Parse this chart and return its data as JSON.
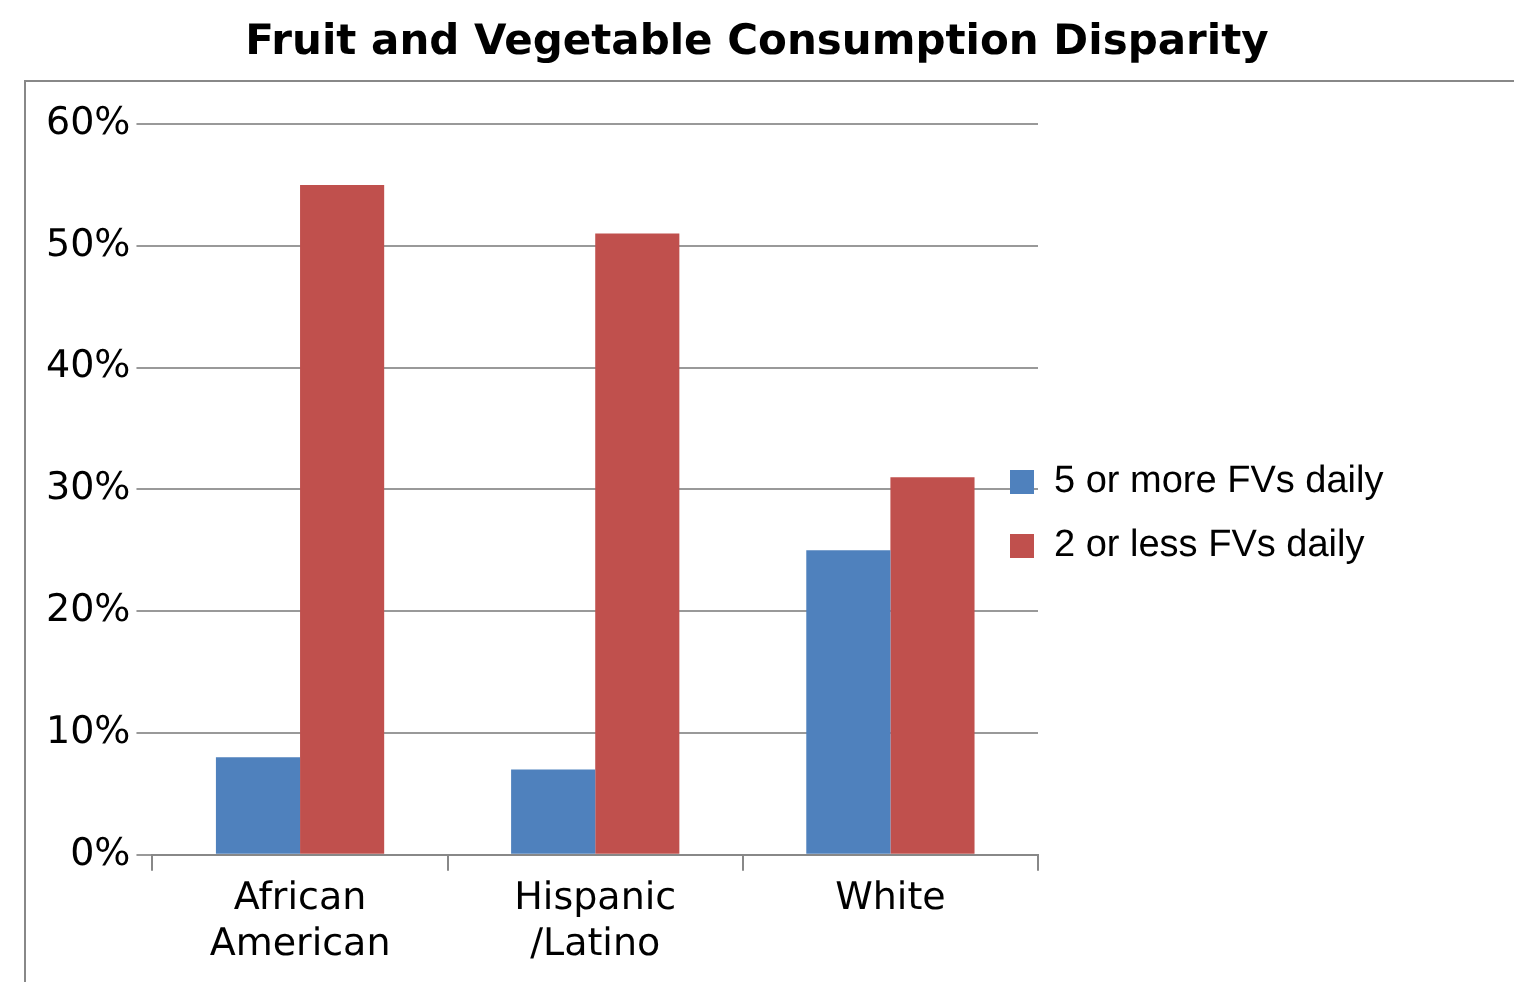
{
  "chart_data": {
    "type": "bar",
    "title": "Fruit and Vegetable Consumption Disparity",
    "categories": [
      "African American",
      "Hispanic /Latino",
      "White"
    ],
    "series": [
      {
        "name": "5 or more FVs daily",
        "color": "#4f81bd",
        "values": [
          8,
          7,
          25
        ]
      },
      {
        "name": "2 or less FVs daily",
        "color": "#c0504d",
        "values": [
          55,
          51,
          31
        ]
      }
    ],
    "ylim": [
      0,
      60
    ],
    "yticks": [
      {
        "value": 0,
        "label": "0%"
      },
      {
        "value": 10,
        "label": "10%"
      },
      {
        "value": 20,
        "label": "20%"
      },
      {
        "value": 30,
        "label": "30%"
      },
      {
        "value": 40,
        "label": "40%"
      },
      {
        "value": 50,
        "label": "50%"
      },
      {
        "value": 60,
        "label": "60%"
      }
    ],
    "grid": "y",
    "legend": "right"
  }
}
